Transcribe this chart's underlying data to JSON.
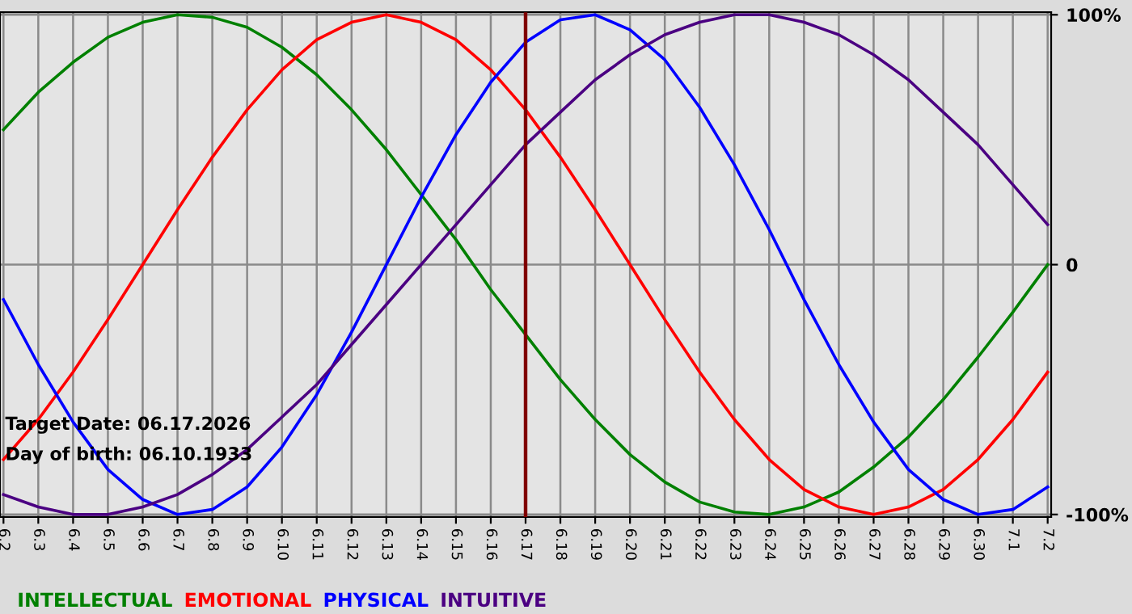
{
  "chart_data": {
    "type": "line",
    "categories": [
      "6.2",
      "6.3",
      "6.4",
      "6.5",
      "6.6",
      "6.7",
      "6.8",
      "6.9",
      "6.10",
      "6.11",
      "6.12",
      "6.13",
      "6.14",
      "6.15",
      "6.16",
      "6.17",
      "6.18",
      "6.19",
      "6.20",
      "6.21",
      "6.22",
      "6.23",
      "6.24",
      "6.25",
      "6.26",
      "6.27",
      "6.28",
      "6.29",
      "6.30",
      "7.1",
      "7.2"
    ],
    "series": [
      {
        "name": "INTELLECTUAL",
        "color": "#008000",
        "values": [
          54,
          69,
          81,
          91,
          97,
          100,
          99,
          95,
          87,
          76,
          62,
          46,
          28,
          10,
          -10,
          -28,
          -46,
          -62,
          -76,
          -87,
          -95,
          -99,
          -100,
          -97,
          -91,
          -81,
          -69,
          -54,
          -37,
          -19,
          0
        ]
      },
      {
        "name": "EMOTIONAL",
        "color": "#ff0000",
        "values": [
          -78,
          -62,
          -43,
          -22,
          0,
          22,
          43,
          62,
          78,
          90,
          97,
          100,
          97,
          90,
          78,
          62,
          43,
          22,
          0,
          -22,
          -43,
          -62,
          -78,
          -90,
          -97,
          -100,
          -97,
          -90,
          -78,
          -62,
          -43
        ]
      },
      {
        "name": "PHYSICAL",
        "color": "#0000ff",
        "values": [
          -14,
          -40,
          -63,
          -82,
          -94,
          -100,
          -98,
          -89,
          -73,
          -52,
          -27,
          0,
          27,
          52,
          73,
          89,
          98,
          100,
          94,
          82,
          63,
          40,
          14,
          -14,
          -40,
          -63,
          -82,
          -94,
          -100,
          -98,
          -89
        ]
      },
      {
        "name": "INTUITIVE",
        "color": "#4b0082",
        "values": [
          -92,
          -97,
          -100,
          -100,
          -97,
          -92,
          -84,
          -74,
          -61,
          -48,
          -32,
          -16,
          0,
          16,
          32,
          48,
          61,
          74,
          84,
          92,
          97,
          100,
          100,
          97,
          92,
          84,
          74,
          61,
          48,
          32,
          16
        ]
      }
    ],
    "ylim": [
      -101,
      101
    ],
    "yticks": [
      {
        "value": 100,
        "label": "100%"
      },
      0,
      {
        "value": -100,
        "label": "-100%"
      }
    ],
    "ref_lines": [
      {
        "axis": "x",
        "value": "6.17",
        "color": "#800000"
      }
    ],
    "annotations": [
      "Target Date: 06.17.2026",
      "Day of birth: 06.10.1933"
    ],
    "grid": true,
    "legend": "bottom",
    "marker": "none",
    "line_style": "solid"
  }
}
